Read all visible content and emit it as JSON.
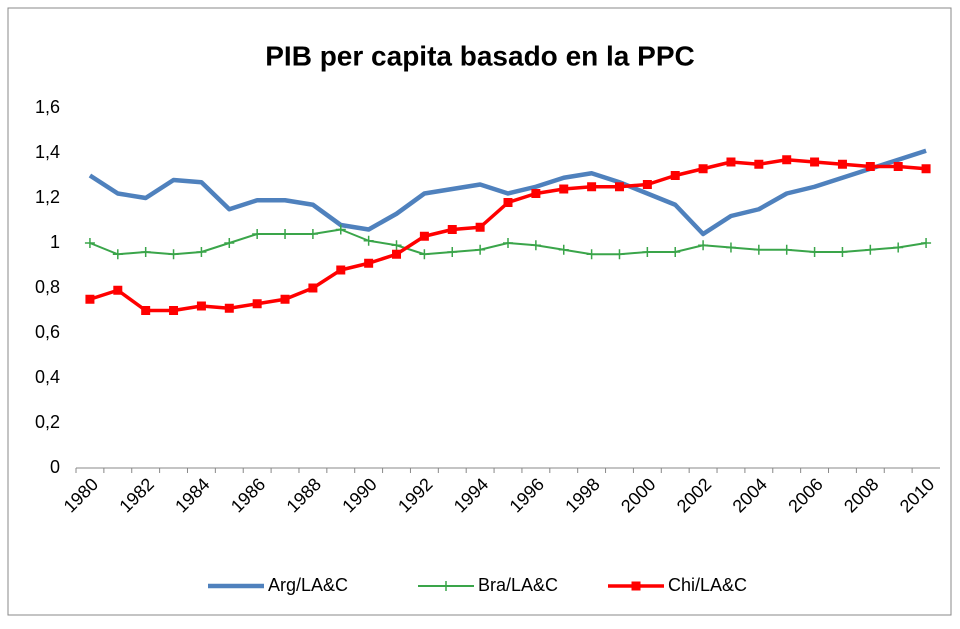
{
  "chart_data": {
    "type": "line",
    "title": "PIB per capita basado en la PPC",
    "categories": [
      "1980",
      null,
      "1982",
      null,
      "1984",
      null,
      "1986",
      null,
      "1988",
      null,
      "1990",
      null,
      "1992",
      null,
      "1994",
      null,
      "1996",
      null,
      "1998",
      null,
      "2000",
      null,
      "2002",
      null,
      "2004",
      null,
      "2006",
      null,
      "2008",
      null,
      "2010"
    ],
    "series": [
      {
        "name": "Arg/LA&C",
        "color": "#4f81bd",
        "marker": "none",
        "values": [
          1.3,
          1.22,
          1.2,
          1.28,
          1.27,
          1.15,
          1.19,
          1.19,
          1.17,
          1.08,
          1.06,
          1.13,
          1.22,
          1.24,
          1.26,
          1.22,
          1.25,
          1.29,
          1.31,
          1.27,
          1.22,
          1.17,
          1.04,
          1.12,
          1.15,
          1.22,
          1.25,
          1.29,
          1.33,
          1.37,
          1.41
        ]
      },
      {
        "name": "Bra/LA&C",
        "color": "#3aa54a",
        "marker": "plus",
        "values": [
          1.0,
          0.95,
          0.96,
          0.95,
          0.96,
          1.0,
          1.04,
          1.04,
          1.04,
          1.06,
          1.01,
          0.99,
          0.95,
          0.96,
          0.97,
          1.0,
          0.99,
          0.97,
          0.95,
          0.95,
          0.96,
          0.96,
          0.99,
          0.98,
          0.97,
          0.97,
          0.96,
          0.96,
          0.97,
          0.98,
          1.0
        ]
      },
      {
        "name": "Chi/LA&C",
        "color": "#ff0000",
        "marker": "square",
        "values": [
          0.75,
          0.79,
          0.7,
          0.7,
          0.72,
          0.71,
          0.73,
          0.75,
          0.8,
          0.88,
          0.91,
          0.95,
          1.03,
          1.06,
          1.07,
          1.18,
          1.22,
          1.24,
          1.25,
          1.25,
          1.26,
          1.3,
          1.33,
          1.36,
          1.35,
          1.37,
          1.36,
          1.35,
          1.34,
          1.34,
          1.33
        ]
      }
    ],
    "ylim": [
      0,
      1.6
    ],
    "yticks": [
      0,
      {
        "value": 0.2,
        "label": "0,2"
      },
      {
        "value": 0.4,
        "label": "0,4"
      },
      {
        "value": 0.6,
        "label": "0,6"
      },
      {
        "value": 0.8,
        "label": "0,8"
      },
      1,
      {
        "value": 1.2,
        "label": "1,2"
      },
      {
        "value": 1.4,
        "label": "1,4"
      },
      {
        "value": 1.6,
        "label": "1,6"
      }
    ],
    "grid": false,
    "legend": "bottom"
  }
}
